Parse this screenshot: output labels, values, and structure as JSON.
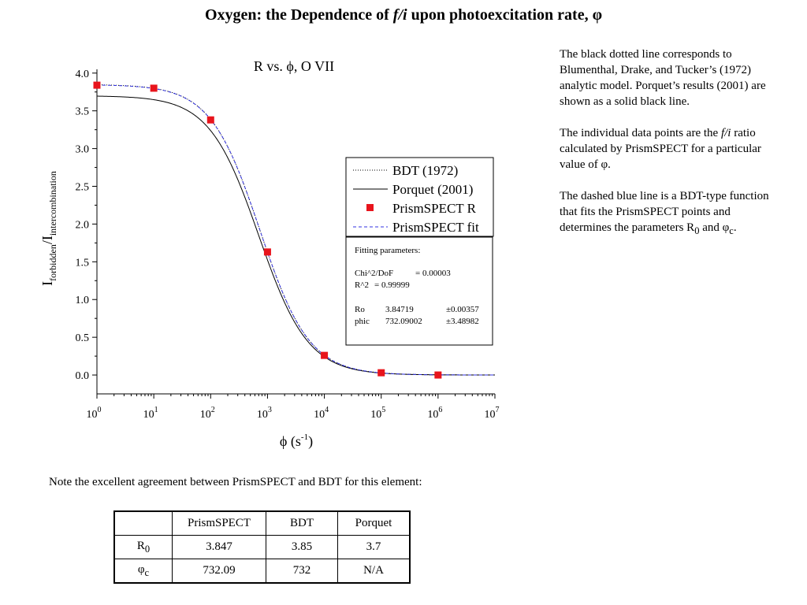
{
  "title": {
    "prefix": "Oxygen: the Dependence of ",
    "ratio": "f/i",
    "suffix": " upon photoexcitation rate, φ"
  },
  "side_notes": {
    "p1": "The black dotted line corresponds to Blumenthal, Drake, and Tucker’s (1972) analytic model.  Porquet’s results (2001) are shown as a solid black line.",
    "p2_prefix": "The individual data points are the ",
    "p2_ratio": "f/i",
    "p2_suffix": " ratio calculated by PrismSPECT for a particular value of φ.",
    "p3_prefix": "The dashed blue line is a BDT-type function that fits the PrismSPECT points and determines the parameters R",
    "p3_r_sub": "0",
    "p3_mid": " and φ",
    "p3_phi_sub": "c",
    "p3_end": "."
  },
  "agreement_note": "Note the excellent agreement between PrismSPECT and BDT for this element:",
  "comparison_table": {
    "headers": [
      "",
      "PrismSPECT",
      "BDT",
      "Porquet"
    ],
    "rows": [
      {
        "label": "R",
        "label_sub": "0",
        "values": [
          "3.847",
          "3.85",
          "3.7"
        ]
      },
      {
        "label": "φ",
        "label_sub": "c",
        "values": [
          "732.09",
          "732",
          "N/A"
        ]
      }
    ]
  },
  "chart_data": {
    "type": "scatter",
    "title": "R vs. ϕ, O VII",
    "xlabel": {
      "main": "ϕ (s",
      "sup": "-1",
      "tail": ")"
    },
    "ylabel": {
      "main": "I",
      "sub1": "forbidden",
      "slash": "/I",
      "sub2": "intercombination"
    },
    "x_scale": "log",
    "xlim": [
      1,
      10000000
    ],
    "ylim": [
      -0.25,
      4.05
    ],
    "x_ticks": [
      {
        "value": 1,
        "base": "10",
        "exp": "0"
      },
      {
        "value": 10,
        "base": "10",
        "exp": "1"
      },
      {
        "value": 100,
        "base": "10",
        "exp": "2"
      },
      {
        "value": 1000,
        "base": "10",
        "exp": "3"
      },
      {
        "value": 10000,
        "base": "10",
        "exp": "4"
      },
      {
        "value": 100000,
        "base": "10",
        "exp": "5"
      },
      {
        "value": 1000000,
        "base": "10",
        "exp": "6"
      },
      {
        "value": 10000000,
        "base": "10",
        "exp": "7"
      }
    ],
    "y_ticks": [
      "0.0",
      "0.5",
      "1.0",
      "1.5",
      "2.0",
      "2.5",
      "3.0",
      "3.5",
      "4.0"
    ],
    "grid": false,
    "series": [
      {
        "name": "BDT (1972)",
        "kind": "model",
        "R0": 3.85,
        "phic": 732,
        "color": "#000000",
        "style": "dotted"
      },
      {
        "name": "Porquet (2001)",
        "kind": "model",
        "R0": 3.7,
        "phic": 700,
        "color": "#000000",
        "style": "solid"
      },
      {
        "name": "PrismSPECT R",
        "kind": "points",
        "color": "#e8141c",
        "x": [
          1,
          10,
          100,
          1000,
          10000,
          100000,
          1000000
        ],
        "y": [
          3.84,
          3.8,
          3.38,
          1.63,
          0.26,
          0.03,
          0.0
        ]
      },
      {
        "name": "PrismSPECT fit",
        "kind": "model",
        "R0": 3.84719,
        "phic": 732.09002,
        "color": "#3030e0",
        "style": "dashed"
      }
    ],
    "legend_position": "right",
    "fit_box": {
      "heading": "Fitting parameters:",
      "lines": [
        [
          "Chi^2/DoF",
          "= 0.00003",
          ""
        ],
        [
          "R^2",
          "=  0.99999",
          ""
        ],
        [
          "Ro",
          "3.84719",
          "±0.00357"
        ],
        [
          "phic",
          "732.09002",
          "±3.48982"
        ]
      ]
    }
  }
}
